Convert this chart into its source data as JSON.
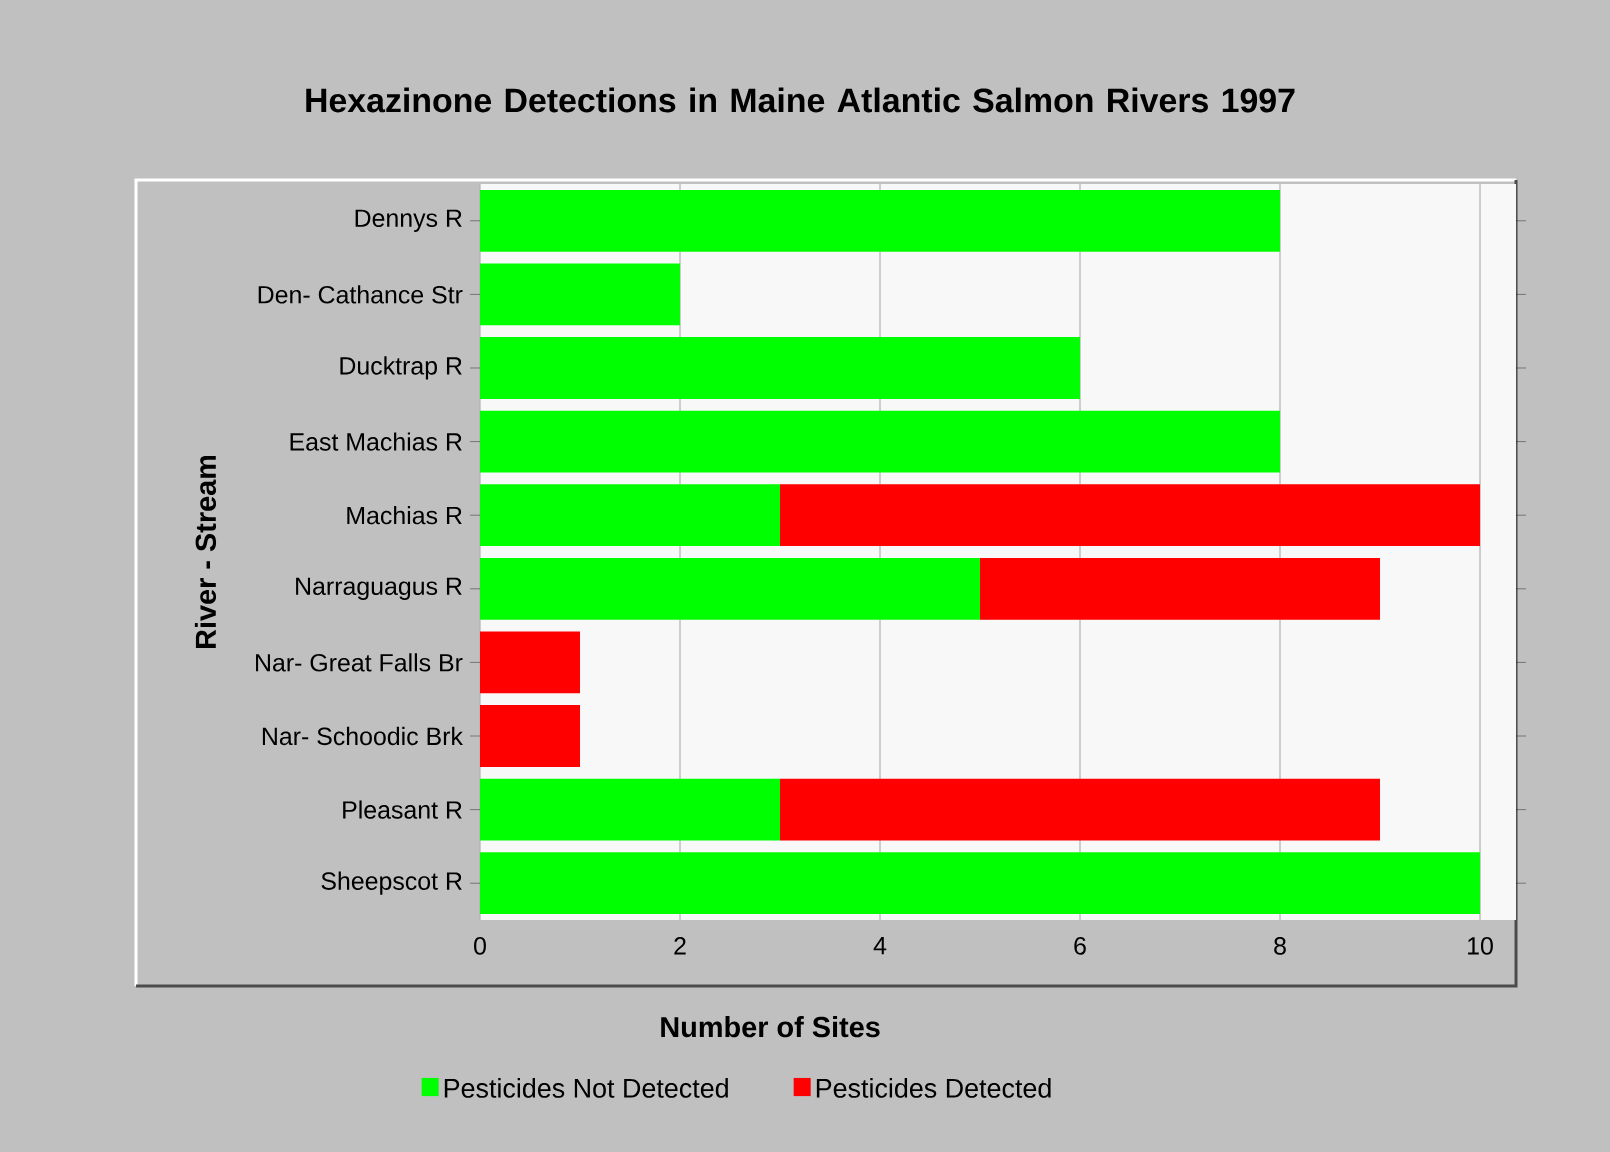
{
  "chart_data": {
    "type": "bar",
    "orientation": "horizontal",
    "stacked": true,
    "title": "Hexazinone Detections in Maine Atlantic Salmon Rivers 1997",
    "xlabel": "Number of Sites",
    "ylabel": "River - Stream",
    "categories": [
      "Dennys R",
      "Den- Cathance Str",
      "Ducktrap R",
      "East Machias R",
      "Machias R",
      "Narraguagus R",
      "Nar- Great Falls Br",
      "Nar- Schoodic Brk",
      "Pleasant R",
      "Sheepscot R"
    ],
    "series": [
      {
        "name": "Pesticides Not Detected",
        "color": "#00ff00",
        "values": [
          8,
          2,
          6,
          8,
          3,
          5,
          0,
          0,
          3,
          10
        ]
      },
      {
        "name": "Pesticides Detected",
        "color": "#ff0000",
        "values": [
          0,
          0,
          0,
          0,
          7,
          4,
          1,
          1,
          6,
          0
        ]
      }
    ],
    "xlim": [
      0,
      10.36
    ],
    "xticks": [
      0,
      2,
      4,
      6,
      8,
      10
    ],
    "grid": "x",
    "legend": "bottom"
  }
}
